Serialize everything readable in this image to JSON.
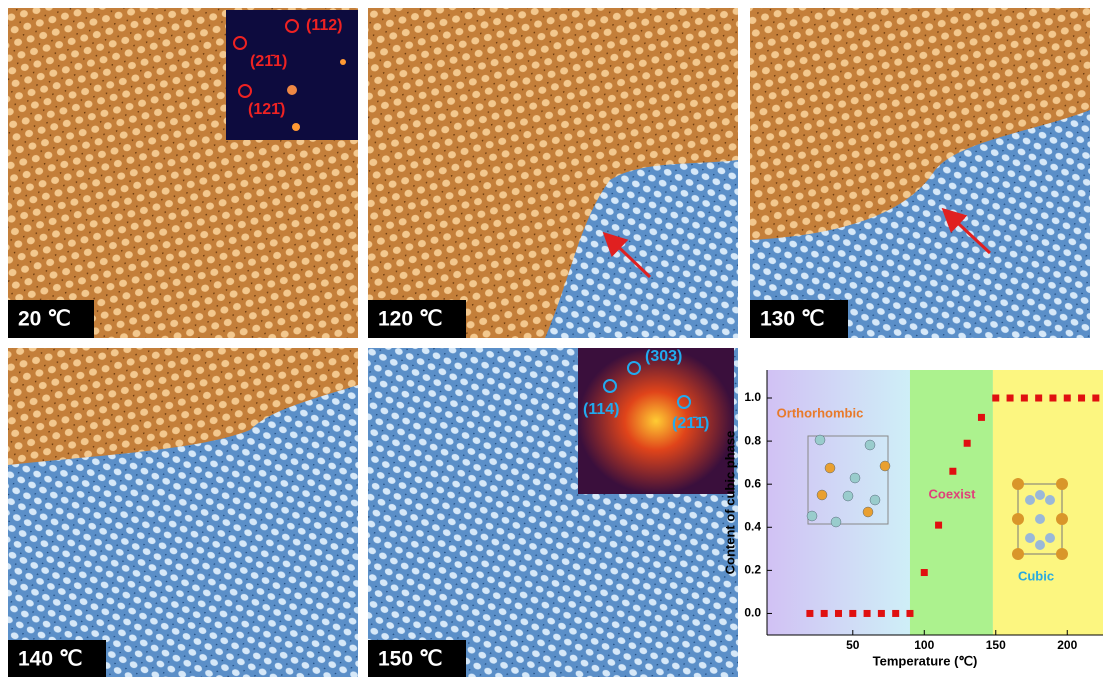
{
  "panels": [
    "20 ℃",
    "120 ℃",
    "130 ℃",
    "140 ℃",
    "150 ℃"
  ],
  "inset_orange": [
    "(112)",
    "(21̄1)",
    "(121̄)"
  ],
  "inset_blue": [
    "(303)",
    "(114)",
    "(21̄1̄)"
  ],
  "chart_data": {
    "type": "scatter",
    "x_label": "Temperature (℃)",
    "y_label": "Content of cubic phase",
    "x": [
      20,
      30,
      40,
      50,
      60,
      70,
      80,
      90,
      100,
      110,
      120,
      130,
      140,
      150,
      160,
      170,
      180,
      190,
      200,
      210,
      220
    ],
    "values": [
      0,
      0,
      0,
      0,
      0,
      0,
      0,
      0,
      0.19,
      0.41,
      0.66,
      0.79,
      0.91,
      1,
      1,
      1,
      1,
      1,
      1,
      1,
      1
    ],
    "color": "#e01010",
    "xlim": [
      -10,
      225
    ],
    "ylim": [
      -0.1,
      1.13
    ],
    "xticks": [
      50,
      100,
      150,
      200
    ],
    "yticks": [
      {
        "value": 0,
        "label": "0.0"
      },
      0.2,
      0.4,
      0.6,
      0.8,
      {
        "value": 1,
        "label": "1.0"
      }
    ],
    "regions": [
      {
        "label": "Orthorhombic",
        "from": -10,
        "to": 90,
        "color": "#b9b0f0"
      },
      {
        "label": "Coexist",
        "from": 90,
        "to": 148,
        "color": "#9ef07a"
      },
      {
        "label": "Cubic",
        "from": 148,
        "to": 225,
        "color": "#fcf56a"
      }
    ]
  }
}
